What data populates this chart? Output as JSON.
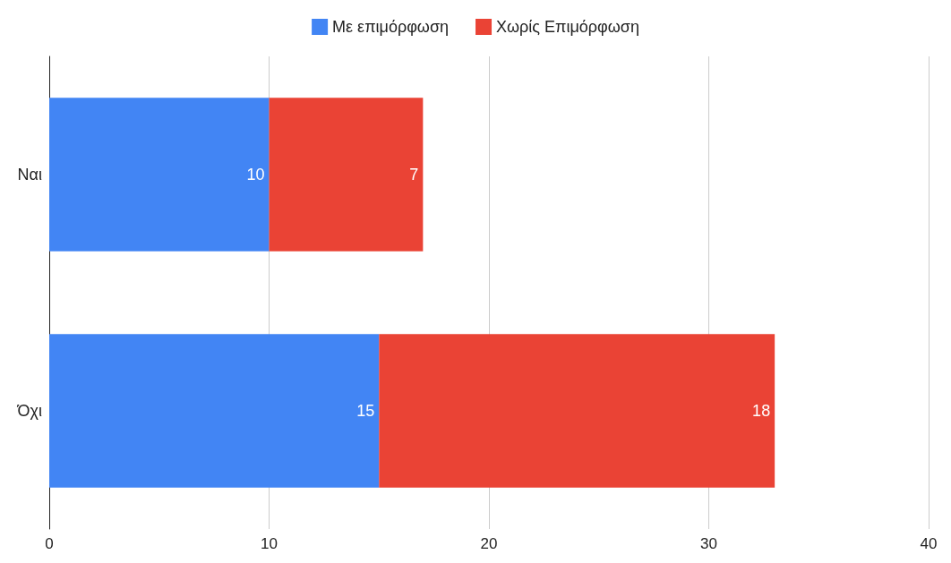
{
  "chart_data": {
    "type": "bar",
    "orientation": "horizontal",
    "stacked": true,
    "categories": [
      "Ναι",
      "Όχι"
    ],
    "series": [
      {
        "name": "Με επιμόρφωση",
        "color": "#4285f4",
        "values": [
          10,
          15
        ]
      },
      {
        "name": "Χωρίς Επιμόρφωση",
        "color": "#ea4335",
        "values": [
          7,
          18
        ]
      }
    ],
    "xlim": [
      0,
      40
    ],
    "xticks": [
      0,
      10,
      20,
      30,
      40
    ],
    "grid": "x",
    "legend": "top",
    "data_labels": true
  }
}
